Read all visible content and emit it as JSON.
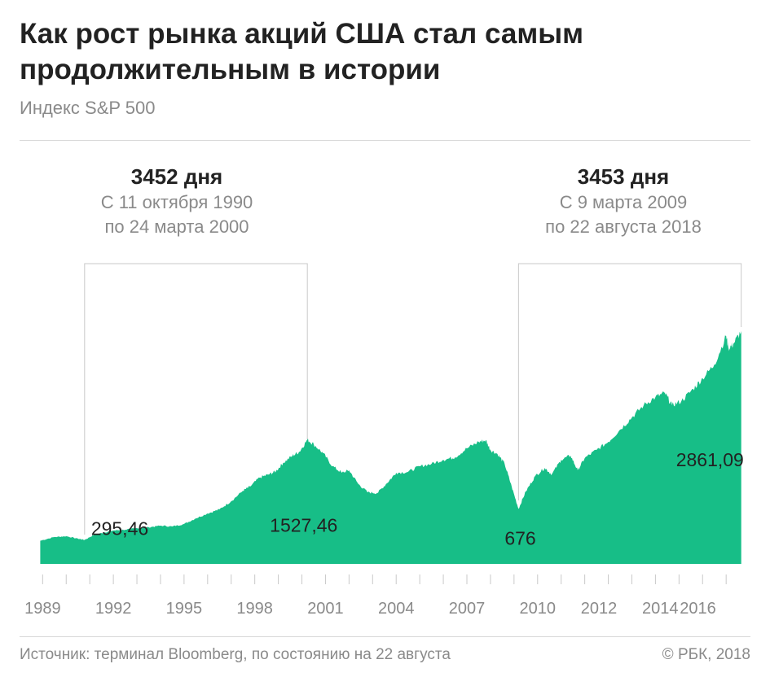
{
  "header": {
    "title": "Как рост рынка акций США стал самым продолжительным в истории",
    "subtitle": "Индекс S&P 500"
  },
  "periods": [
    {
      "days": "3452 дня",
      "line1": "С 11 октября 1990",
      "line2": "по 24 марта 2000"
    },
    {
      "days": "3453 дня",
      "line1": "С 9 марта 2009",
      "line2": "по 22 августа 2018"
    }
  ],
  "footer": {
    "source": "Источник: терминал Bloomberg, по состоянию на 22 августа",
    "copyright": "© РБК, 2018"
  },
  "colors": {
    "area": "#17be87",
    "bracket": "#c9c9c9",
    "axis": "#c9c9c9"
  },
  "chart_data": {
    "type": "area",
    "x_tick_labels": [
      "1989",
      "1992",
      "1995",
      "1998",
      "2001",
      "2004",
      "2007",
      "2010",
      "2012",
      "2014",
      "2016"
    ],
    "x_tick_years": [
      1989,
      1992,
      1995,
      1998,
      2001,
      2004,
      2007,
      2010,
      2012.6,
      2015.2,
      2016.8
    ],
    "xlim": [
      1988.85,
      2018.65
    ],
    "ylim": [
      0,
      3000
    ],
    "annotations": [
      {
        "label": "295,46",
        "x": 1990.78,
        "y": 295.46
      },
      {
        "label": "1527,46",
        "x": 2000.23,
        "y": 1527.46
      },
      {
        "label": "676",
        "x": 2009.19,
        "y": 676
      },
      {
        "label": "2861,09",
        "x": 2018.64,
        "y": 2861.09
      }
    ],
    "series": [
      {
        "x": [
          1988.9,
          1989.5,
          1990.0,
          1990.5,
          1990.78,
          1991.2,
          1991.6,
          1992.0,
          1992.5,
          1993.0,
          1993.5,
          1994.0,
          1994.5,
          1995.0,
          1995.5,
          1996.0,
          1996.5,
          1997.0,
          1997.5,
          1997.8,
          1998.2,
          1998.6,
          1998.9,
          1999.2,
          1999.6,
          1999.9,
          2000.23,
          2000.5,
          2000.9,
          2001.3,
          2001.7,
          2002.0,
          2002.4,
          2002.8,
          2003.2,
          2003.6,
          2004.0,
          2004.5,
          2005.0,
          2005.5,
          2006.0,
          2006.5,
          2007.0,
          2007.5,
          2007.8,
          2008.0,
          2008.3,
          2008.6,
          2008.9,
          2009.19,
          2009.5,
          2009.9,
          2010.3,
          2010.6,
          2011.0,
          2011.4,
          2011.7,
          2012.0,
          2012.5,
          2013.0,
          2013.5,
          2014.0,
          2014.5,
          2015.0,
          2015.4,
          2015.7,
          2016.1,
          2016.6,
          2017.0,
          2017.5,
          2018.0,
          2018.1,
          2018.3,
          2018.64
        ],
        "y": [
          285,
          330,
          340,
          310,
          295,
          360,
          385,
          410,
          420,
          440,
          450,
          470,
          460,
          490,
          560,
          620,
          670,
          770,
          900,
          950,
          1060,
          1100,
          1140,
          1240,
          1330,
          1380,
          1527,
          1470,
          1360,
          1200,
          1120,
          1150,
          980,
          880,
          870,
          990,
          1120,
          1130,
          1200,
          1230,
          1280,
          1310,
          1420,
          1500,
          1520,
          1400,
          1350,
          1230,
          950,
          676,
          890,
          1080,
          1180,
          1100,
          1280,
          1330,
          1150,
          1300,
          1400,
          1500,
          1650,
          1800,
          1950,
          2050,
          2100,
          1950,
          2000,
          2150,
          2280,
          2450,
          2800,
          2650,
          2700,
          2861
        ]
      }
    ]
  }
}
